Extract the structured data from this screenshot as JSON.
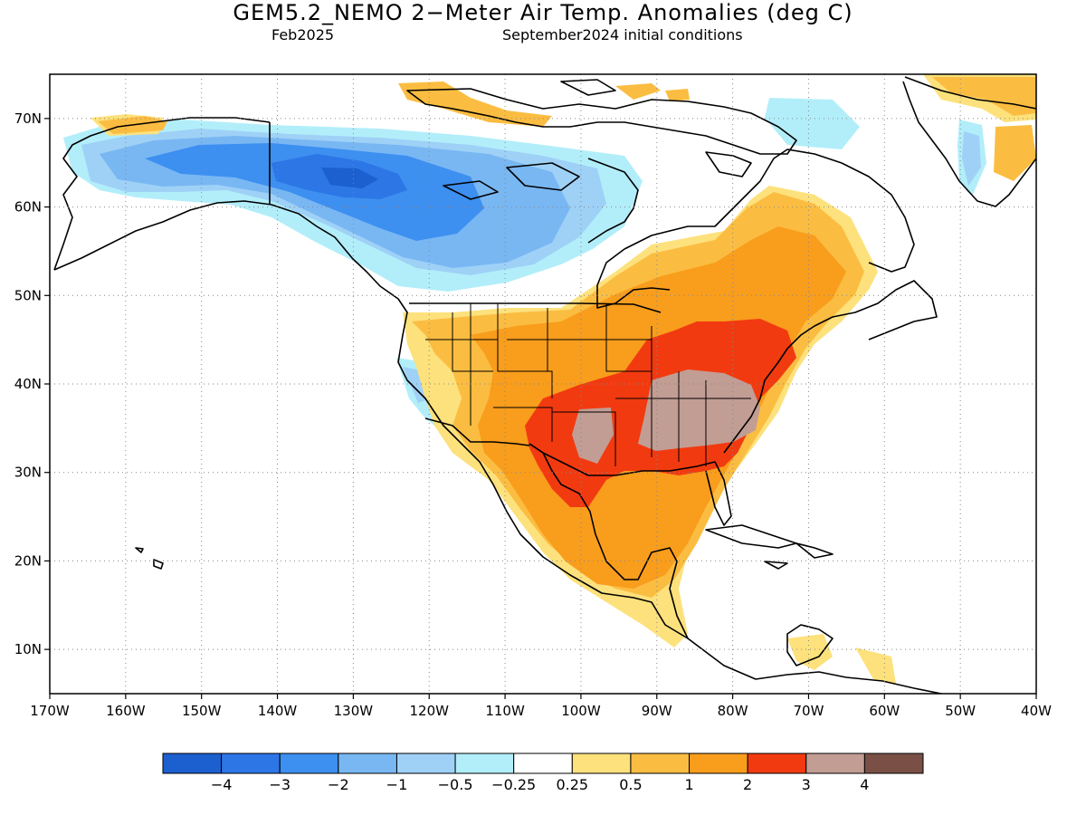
{
  "title": "GEM5.2_NEMO 2−Meter Air Temp. Anomalies (deg C)",
  "valid_month": "Feb2025",
  "init": "September2024 initial conditions",
  "map": {
    "lat_labels": [
      "70N",
      "60N",
      "50N",
      "40N",
      "30N",
      "20N",
      "10N"
    ],
    "lon_labels": [
      "170W",
      "160W",
      "150W",
      "140W",
      "130W",
      "120W",
      "110W",
      "100W",
      "90W",
      "80W",
      "70W",
      "60W",
      "50W",
      "40W"
    ],
    "extent": {
      "lon_min": -170,
      "lon_max": -40,
      "lat_min": 5,
      "lat_max": 75
    },
    "land_color": "#ffffff",
    "coast_color": "#000000",
    "grid": "dotted"
  },
  "legend": {
    "colors": [
      "#1c5fcf",
      "#2d76e6",
      "#3d8ff0",
      "#79b7f3",
      "#9fd1f7",
      "#b2eefa",
      "#ffffff",
      "#fde17c",
      "#fbbd41",
      "#f99d1c",
      "#f23a10",
      "#c29d94",
      "#7a5046"
    ],
    "labels": [
      "−4",
      "−3",
      "−2",
      "−1",
      "−0.5",
      "−0.25",
      "0.25",
      "0.5",
      "1",
      "2",
      "3",
      "4"
    ]
  }
}
